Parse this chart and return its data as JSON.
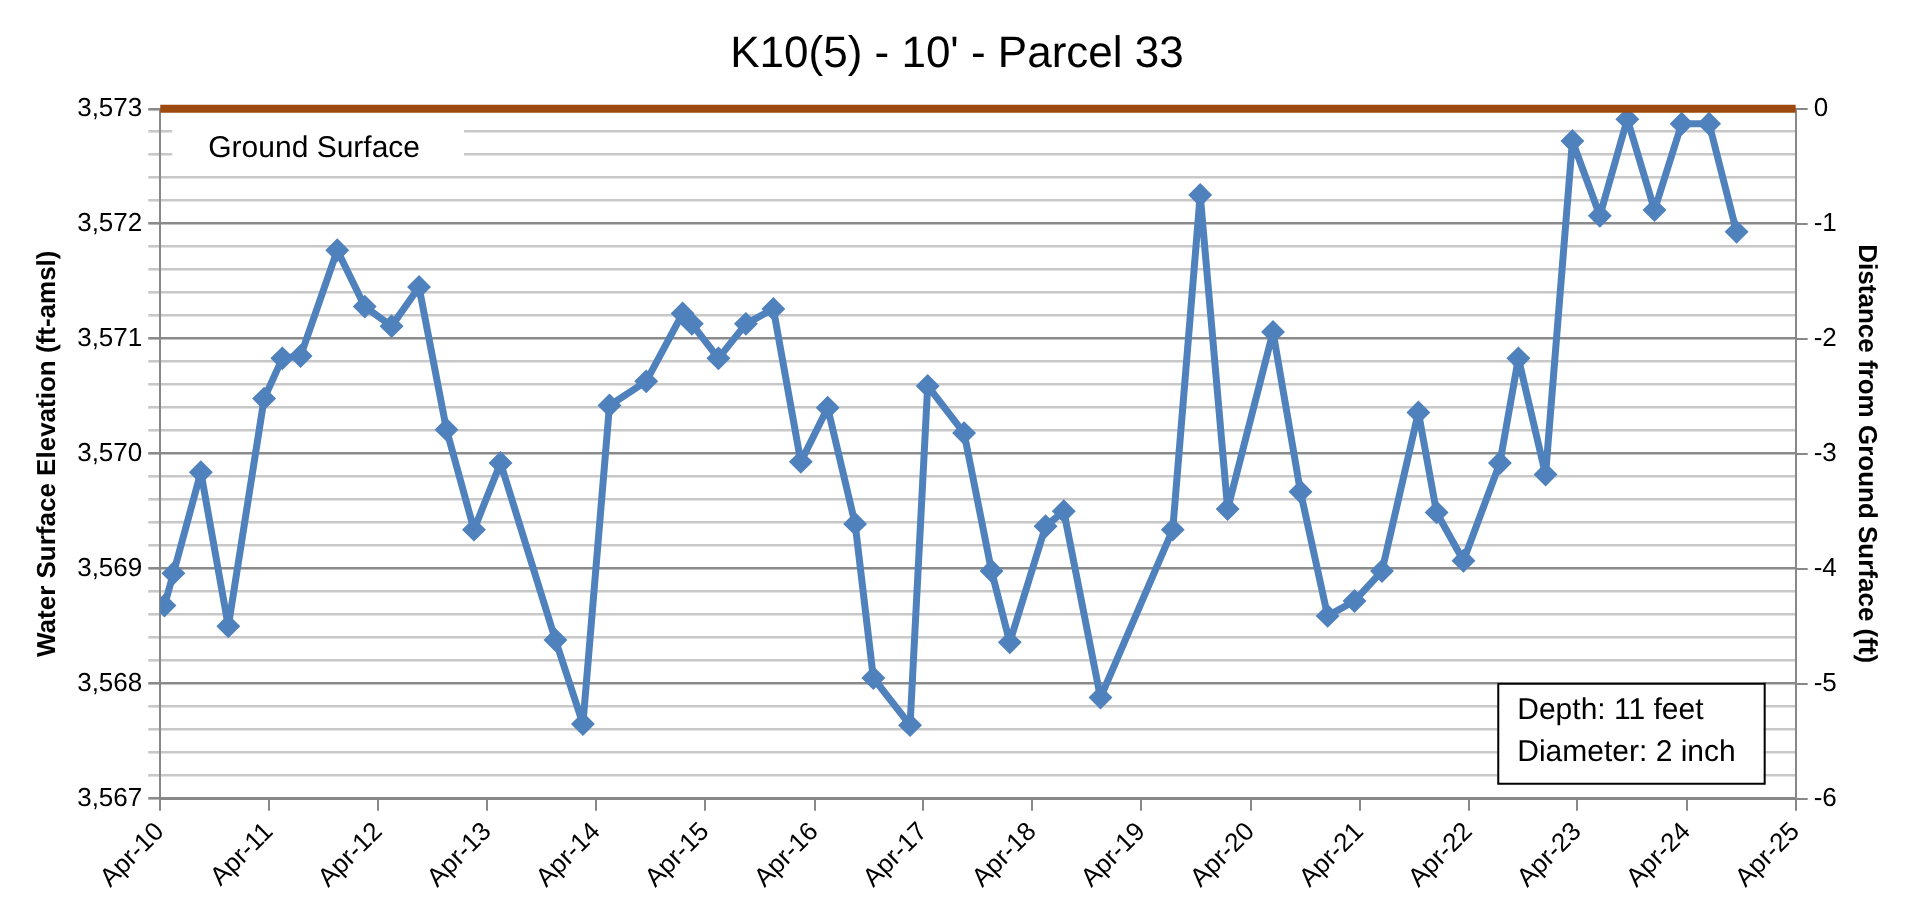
{
  "chart_data": {
    "type": "line",
    "title": "K10(5) - 10' - Parcel 33",
    "ylabel": "Water Surface Elevation (ft-amsl)",
    "y2label": "Distance from Ground Surface (ft)",
    "x": [
      "2010-04-15",
      "2010-05-15",
      "2010-08-15",
      "2010-11-15",
      "2011-03-15",
      "2011-05-15",
      "2011-07-15",
      "2011-11-15",
      "2012-02-15",
      "2012-05-15",
      "2012-08-15",
      "2012-11-15",
      "2013-02-15",
      "2013-05-15",
      "2013-11-15",
      "2014-02-15",
      "2014-05-15",
      "2014-09-15",
      "2015-01-15",
      "2015-02-15",
      "2015-05-15",
      "2015-08-15",
      "2015-11-15",
      "2016-02-15",
      "2016-05-15",
      "2016-08-15",
      "2016-10-15",
      "2017-02-15",
      "2017-04-15",
      "2017-08-15",
      "2017-11-15",
      "2018-01-15",
      "2018-05-15",
      "2018-07-15",
      "2018-11-15",
      "2019-07-15",
      "2019-10-15",
      "2020-01-15",
      "2020-06-15",
      "2020-09-15",
      "2020-12-15",
      "2021-03-15",
      "2021-06-15",
      "2021-10-15",
      "2021-12-15",
      "2022-03-15",
      "2022-07-15",
      "2022-09-15",
      "2022-12-15",
      "2023-03-15",
      "2023-06-15",
      "2023-09-15",
      "2023-12-15",
      "2024-03-15",
      "2024-06-15",
      "2024-09-15"
    ],
    "series": [
      {
        "color": "#4f81bd",
        "values": [
          3568.68,
          3568.96,
          3569.84,
          3568.5,
          3570.48,
          3570.83,
          3570.85,
          3571.77,
          3571.28,
          3571.11,
          3571.45,
          3570.21,
          3569.34,
          3569.92,
          3568.38,
          3567.65,
          3570.42,
          3570.63,
          3571.22,
          3571.13,
          3570.83,
          3571.13,
          3571.26,
          3569.93,
          3570.4,
          3569.39,
          3568.05,
          3567.64,
          3570.59,
          3570.18,
          3568.98,
          3568.36,
          3569.37,
          3569.5,
          3567.88,
          3569.34,
          3572.25,
          3569.52,
          3571.06,
          3569.67,
          3568.59,
          3568.72,
          3568.98,
          3570.36,
          3569.49,
          3569.07,
          3569.92,
          3570.83,
          3569.82,
          3572.72,
          3572.07,
          3572.91,
          3572.12,
          3572.87,
          3572.87,
          3571.93
        ]
      }
    ],
    "xlim": [
      "2010-04-01",
      "2025-04-01"
    ],
    "xticks": [
      {
        "value": "2010-04-01",
        "label": "Apr-10"
      },
      {
        "value": "2011-04-01",
        "label": "Apr-11"
      },
      {
        "value": "2012-04-01",
        "label": "Apr-12"
      },
      {
        "value": "2013-04-01",
        "label": "Apr-13"
      },
      {
        "value": "2014-04-01",
        "label": "Apr-14"
      },
      {
        "value": "2015-04-01",
        "label": "Apr-15"
      },
      {
        "value": "2016-04-01",
        "label": "Apr-16"
      },
      {
        "value": "2017-04-01",
        "label": "Apr-17"
      },
      {
        "value": "2018-04-01",
        "label": "Apr-18"
      },
      {
        "value": "2019-04-01",
        "label": "Apr-19"
      },
      {
        "value": "2020-04-01",
        "label": "Apr-20"
      },
      {
        "value": "2021-04-01",
        "label": "Apr-21"
      },
      {
        "value": "2022-04-01",
        "label": "Apr-22"
      },
      {
        "value": "2023-04-01",
        "label": "Apr-23"
      },
      {
        "value": "2024-04-01",
        "label": "Apr-24"
      },
      {
        "value": "2025-04-01",
        "label": "Apr-25"
      }
    ],
    "ylim": [
      3567,
      3573
    ],
    "yticks": [
      {
        "value": 3567,
        "label": "3,567"
      },
      {
        "value": 3567.2,
        "label": null
      },
      {
        "value": 3567.4,
        "label": null
      },
      {
        "value": 3567.6,
        "label": null
      },
      {
        "value": 3567.8,
        "label": null
      },
      {
        "value": 3568,
        "label": "3,568"
      },
      {
        "value": 3568.2,
        "label": null
      },
      {
        "value": 3568.4,
        "label": null
      },
      {
        "value": 3568.6,
        "label": null
      },
      {
        "value": 3568.8,
        "label": null
      },
      {
        "value": 3569,
        "label": "3,569"
      },
      {
        "value": 3569.2,
        "label": null
      },
      {
        "value": 3569.4,
        "label": null
      },
      {
        "value": 3569.6,
        "label": null
      },
      {
        "value": 3569.8,
        "label": null
      },
      {
        "value": 3570,
        "label": "3,570"
      },
      {
        "value": 3570.2,
        "label": null
      },
      {
        "value": 3570.4,
        "label": null
      },
      {
        "value": 3570.6,
        "label": null
      },
      {
        "value": 3570.8,
        "label": null
      },
      {
        "value": 3571,
        "label": "3,571"
      },
      {
        "value": 3571.2,
        "label": null
      },
      {
        "value": 3571.4,
        "label": null
      },
      {
        "value": 3571.6,
        "label": null
      },
      {
        "value": 3571.8,
        "label": null
      },
      {
        "value": 3572,
        "label": "3,572"
      },
      {
        "value": 3572.2,
        "label": null
      },
      {
        "value": 3572.4,
        "label": null
      },
      {
        "value": 3572.6,
        "label": null
      },
      {
        "value": 3572.8,
        "label": null
      },
      {
        "value": 3573,
        "label": "3,573"
      }
    ],
    "y2lim": [
      -6,
      0
    ],
    "y2ticks": [
      -6,
      -5,
      -4,
      -3,
      -2,
      -1,
      0
    ],
    "ref_lines": [
      {
        "axis": "y",
        "value": 3573,
        "label": "Ground Surface",
        "color": "#9c4a10"
      }
    ],
    "annotations": [
      "Depth: 11 feet",
      "Diameter: 2 inch"
    ],
    "grid": "y",
    "legend": false,
    "marker": "diamond",
    "line_style": "solid"
  }
}
